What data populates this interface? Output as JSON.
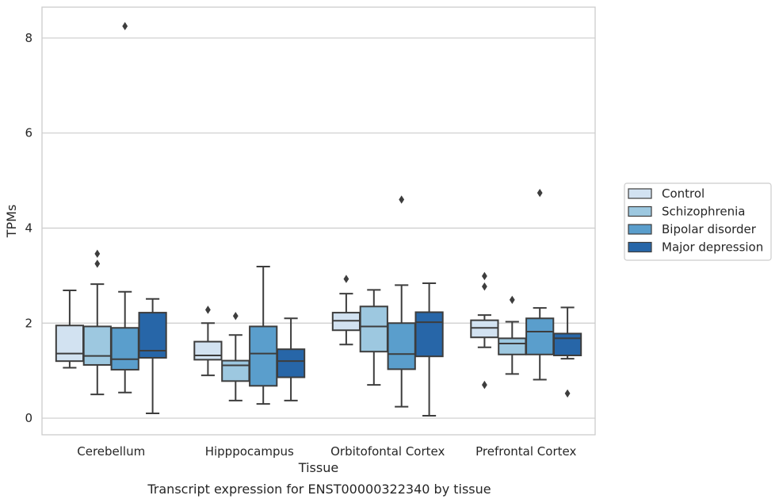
{
  "chart_data": {
    "type": "box",
    "title": "",
    "caption": "Transcript expression for ENST00000322340 by tissue",
    "xlabel": "Tissue",
    "ylabel": "TPMs",
    "ylim": [
      -0.35,
      8.65
    ],
    "yticks": [
      0,
      2,
      4,
      6,
      8
    ],
    "grid": "horizontal",
    "legend_position": "right",
    "categories": [
      "Cerebellum",
      "Hipppocampus",
      "Orbitofontal Cortex",
      "Prefrontal Cortex"
    ],
    "series": [
      {
        "name": "Control",
        "color": "#d2e2f1",
        "boxes": [
          {
            "whislo": 1.06,
            "q1": 1.2,
            "med": 1.36,
            "q3": 1.95,
            "whishi": 2.69,
            "fliers": []
          },
          {
            "whislo": 0.9,
            "q1": 1.23,
            "med": 1.32,
            "q3": 1.61,
            "whishi": 2.0,
            "fliers": [
              2.28
            ]
          },
          {
            "whislo": 1.55,
            "q1": 1.85,
            "med": 2.05,
            "q3": 2.22,
            "whishi": 2.62,
            "fliers": [
              2.93
            ]
          },
          {
            "whislo": 1.49,
            "q1": 1.7,
            "med": 1.9,
            "q3": 2.06,
            "whishi": 2.17,
            "fliers": [
              0.7,
              2.77,
              2.99
            ]
          }
        ]
      },
      {
        "name": "Schizophrenia",
        "color": "#9dc8e0",
        "boxes": [
          {
            "whislo": 0.5,
            "q1": 1.12,
            "med": 1.31,
            "q3": 1.93,
            "whishi": 2.82,
            "fliers": [
              3.25,
              3.46
            ]
          },
          {
            "whislo": 0.37,
            "q1": 0.78,
            "med": 1.11,
            "q3": 1.21,
            "whishi": 1.75,
            "fliers": [
              2.15
            ]
          },
          {
            "whislo": 0.7,
            "q1": 1.4,
            "med": 1.93,
            "q3": 2.35,
            "whishi": 2.7,
            "fliers": []
          },
          {
            "whislo": 0.93,
            "q1": 1.34,
            "med": 1.57,
            "q3": 1.68,
            "whishi": 2.03,
            "fliers": [
              2.49
            ]
          }
        ]
      },
      {
        "name": "Bipolar disorder",
        "color": "#5a9ecc",
        "boxes": [
          {
            "whislo": 0.54,
            "q1": 1.02,
            "med": 1.24,
            "q3": 1.9,
            "whishi": 2.66,
            "fliers": [
              8.25
            ]
          },
          {
            "whislo": 0.3,
            "q1": 0.68,
            "med": 1.36,
            "q3": 1.93,
            "whishi": 3.19,
            "fliers": []
          },
          {
            "whislo": 0.24,
            "q1": 1.03,
            "med": 1.35,
            "q3": 2.0,
            "whishi": 2.8,
            "fliers": [
              4.6
            ]
          },
          {
            "whislo": 0.81,
            "q1": 1.34,
            "med": 1.82,
            "q3": 2.1,
            "whishi": 2.32,
            "fliers": [
              4.74
            ]
          }
        ]
      },
      {
        "name": "Major depression",
        "color": "#2766a8",
        "boxes": [
          {
            "whislo": 0.1,
            "q1": 1.27,
            "med": 1.42,
            "q3": 2.22,
            "whishi": 2.51,
            "fliers": []
          },
          {
            "whislo": 0.37,
            "q1": 0.86,
            "med": 1.2,
            "q3": 1.45,
            "whishi": 2.1,
            "fliers": []
          },
          {
            "whislo": 0.05,
            "q1": 1.3,
            "med": 2.02,
            "q3": 2.23,
            "whishi": 2.84,
            "fliers": []
          },
          {
            "whislo": 1.25,
            "q1": 1.32,
            "med": 1.68,
            "q3": 1.78,
            "whishi": 2.33,
            "fliers": [
              0.52
            ]
          }
        ]
      }
    ]
  }
}
